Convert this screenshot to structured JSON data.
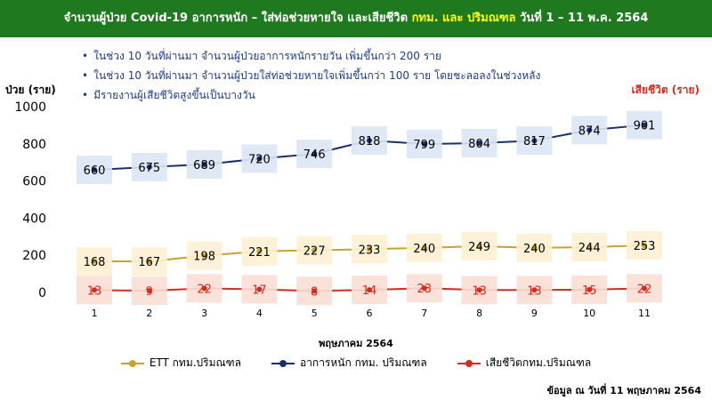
{
  "header": {
    "title_part1": "จำนวนผู้ป่วย Covid-19 อาการหนัก – ใส่ท่อช่วยหายใจ และเสียชีวิต ",
    "title_highlight": "กทม. และ ปริมณฑล",
    "title_part2": " วันที่ 1 – 11 พ.ค. 2564"
  },
  "bullets": [
    "ในช่วง 10 วันที่ผ่านมา จำนวนผู้ป่วยอาการหนักรายวัน เพิ่มขึ้นกว่า 200 ราย",
    "ในช่วง 10 วันที่ผ่านมา จำนวนผู้ป่วยใส่ท่อช่วยหายใจเพิ่มขึ้นกว่า 100 ราย โดยชะลอลงในช่วงหลัง",
    "มีรายงานผู้เสียชีวิตสูงขึ้นเป็นบางวัน"
  ],
  "colors": {
    "header_bg": "#1f7a1f",
    "header_highlight": "#ffff00",
    "severe": "#1a2f6e",
    "severe_label_bg": "#dbe7f5",
    "ett": "#c9a227",
    "ett_label_bg": "#fdf1d3",
    "death": "#d62b1f",
    "death_label_bg": "#f9dfd5",
    "bullet_text": "#1f3b8c"
  },
  "chart_data": {
    "type": "line",
    "categories": [
      "1",
      "2",
      "3",
      "4",
      "5",
      "6",
      "7",
      "8",
      "9",
      "10",
      "11"
    ],
    "series": [
      {
        "name": "อาการหนัก กทม. ปริมณฑล",
        "values": [
          660,
          675,
          689,
          720,
          746,
          818,
          799,
          804,
          817,
          874,
          901
        ]
      },
      {
        "name": "ETT กทม.ปริมณฑล",
        "values": [
          168,
          167,
          198,
          221,
          227,
          233,
          240,
          249,
          240,
          244,
          253
        ]
      },
      {
        "name": "เสียชีวิตกทม.ปริมณฑล",
        "values": [
          13,
          9,
          22,
          17,
          8,
          14,
          23,
          13,
          13,
          15,
          22
        ]
      }
    ],
    "ylabel_left": "ป่วย (ราย)",
    "ylabel_right": "เสียชีวิต (ราย)",
    "xlabel": "พฤษภาคม 2564",
    "ylim": [
      0,
      1000
    ],
    "yticks": [
      0,
      200,
      400,
      600,
      800,
      1000
    ],
    "legend_order": [
      "ETT กทม.ปริมณฑล",
      "อาการหนัก กทม. ปริมณฑล",
      "เสียชีวิตกทม.ปริมณฑล"
    ],
    "legend_position": "bottom",
    "grid": false
  },
  "footnote": "ข้อมูล ณ วันที่ 11 พฤษภาคม 2564"
}
